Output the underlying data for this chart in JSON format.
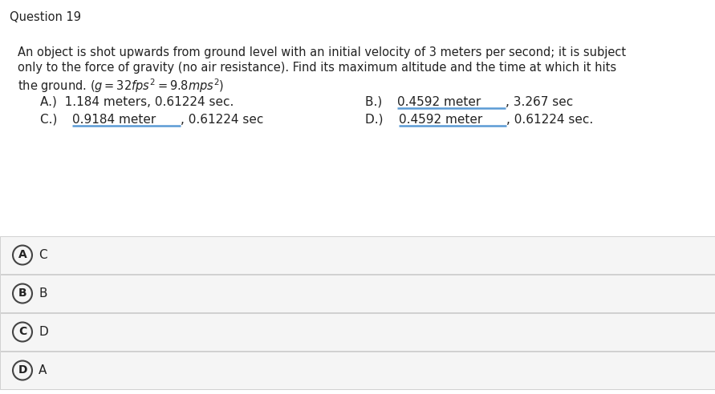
{
  "title": "Question 19",
  "q_line1": "An object is shot upwards from ground level with an initial velocity of 3 meters per second; it is subject",
  "q_line2": "only to the force of gravity (no air resistance). Find its maximum altitude and the time at which it hits",
  "q_line3_prefix": "the ground. (",
  "q_line3_math": "g",
  "q_line3_mid": " = 32",
  "q_line3_math2": "fps",
  "q_line3_sup1": "2",
  "q_line3_eq": " = 9.8",
  "q_line3_math3": "mps",
  "q_line3_sup2": "2",
  "q_line3_suffix": ")",
  "opt_A_pre": "A.)  1.184 meters, 0.61224 sec.",
  "opt_B_pre": "B.)  ",
  "opt_B_ul": "0.4592 meter",
  "opt_B_suf": ", 3.267 sec",
  "opt_C_pre": "C.)  ",
  "opt_C_ul": "0.9184 meter",
  "opt_C_suf": ", 0.61224 sec",
  "opt_D_pre": "D.)  ",
  "opt_D_ul": "0.4592 meter",
  "opt_D_suf": ", 0.61224 sec.",
  "answers": [
    {
      "label": "A",
      "text": "C"
    },
    {
      "label": "B",
      "text": "B"
    },
    {
      "label": "C",
      "text": "D"
    },
    {
      "label": "D",
      "text": "A"
    }
  ],
  "bg_color": "#ffffff",
  "answer_bg": "#f5f5f5",
  "answer_border": "#d0d0d0",
  "text_color": "#222222",
  "circle_edge": "#444444",
  "ul_color": "#5b9bd5",
  "fs_title": 10.5,
  "fs_question": 10.5,
  "fs_option": 11,
  "fs_answer": 11,
  "fs_circle": 10
}
